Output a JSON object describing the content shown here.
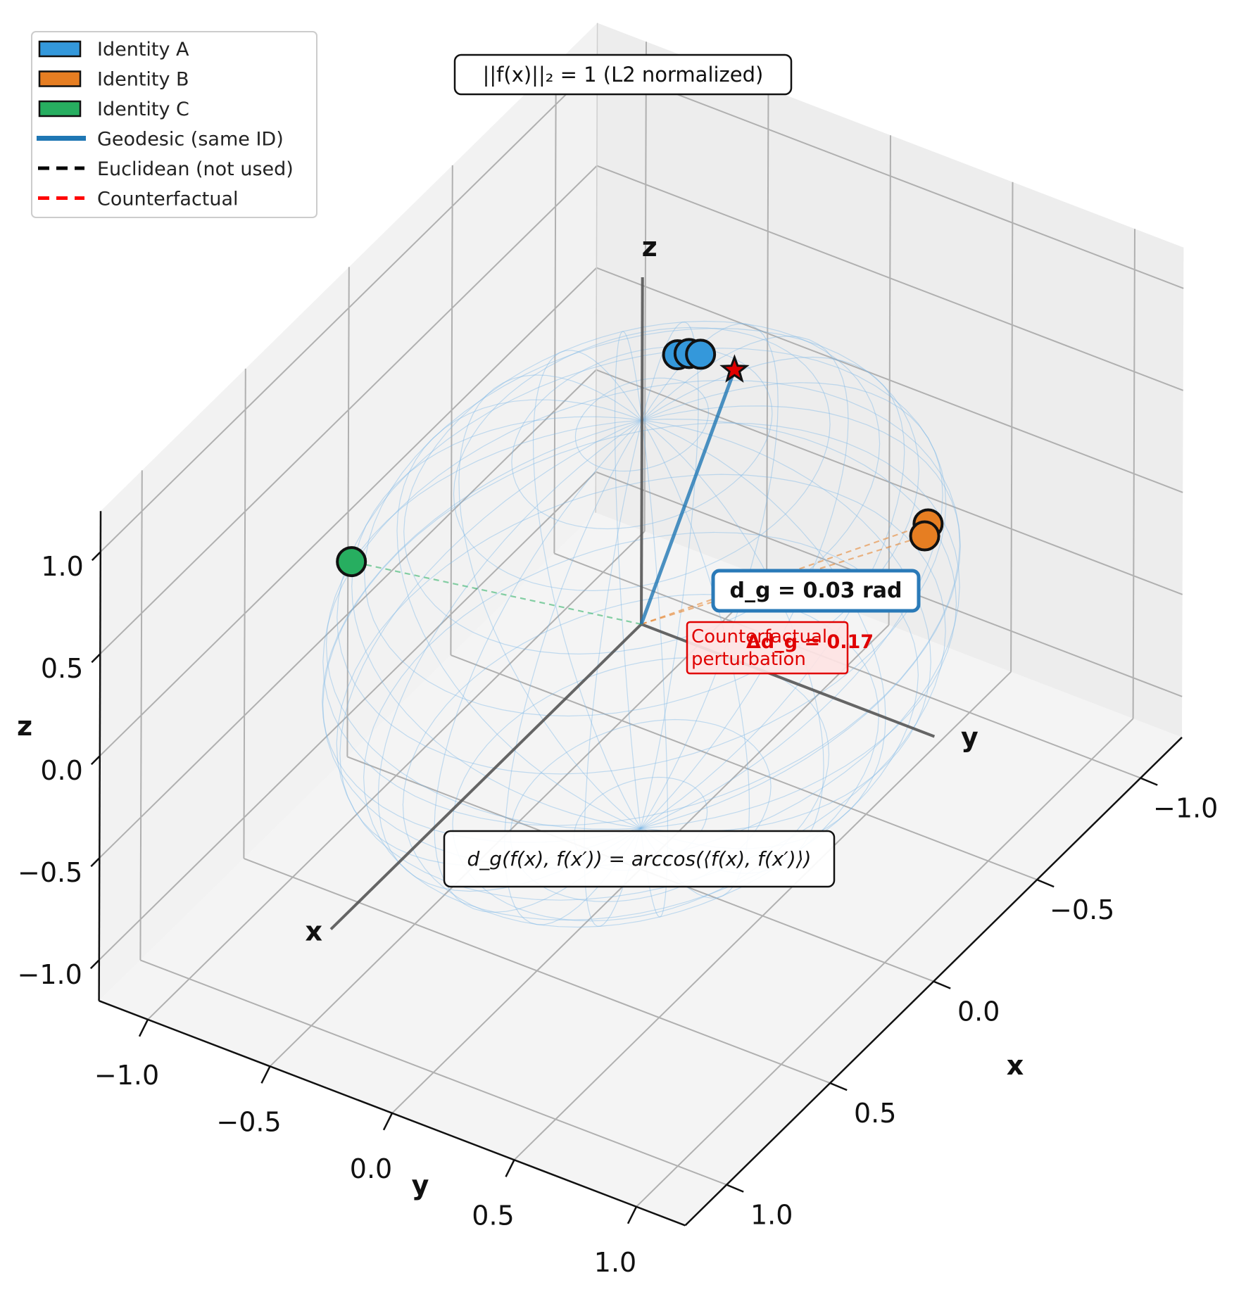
{
  "chart_data": {
    "type": "scatter",
    "projection": "3d",
    "xlabel": "x",
    "ylabel": "y",
    "zlabel": "z",
    "xlim": [
      -1.2,
      1.2
    ],
    "ylim": [
      -1.2,
      1.2
    ],
    "zlim": [
      -1.2,
      1.2
    ],
    "x_ticks": [
      "−1.0",
      "−0.5",
      "0.0",
      "0.5",
      "1.0"
    ],
    "y_ticks": [
      "−1.0",
      "−0.5",
      "0.0",
      "0.5",
      "1.0"
    ],
    "z_ticks": [
      "−1.0",
      "−0.5",
      "0.0",
      "0.5",
      "1.0"
    ],
    "grid": true,
    "legend_position": "top-left",
    "unit_sphere": true,
    "internal_axis_labels": {
      "x": "x",
      "y": "y",
      "z": "z"
    },
    "series": [
      {
        "name": "Identity A",
        "color": "#3498db",
        "points": [
          [
            -0.84,
            -0.47,
            0.27
          ],
          [
            -0.82,
            -0.5,
            0.28
          ],
          [
            -0.8,
            -0.53,
            0.28
          ]
        ]
      },
      {
        "name": "Identity B",
        "color": "#e67e22",
        "points": [
          [
            -0.4,
            0.82,
            0.41
          ],
          [
            -0.44,
            0.8,
            0.42
          ]
        ]
      },
      {
        "name": "Identity C",
        "color": "#27ae60",
        "points": [
          [
            0.28,
            -0.95,
            0.15
          ]
        ]
      }
    ],
    "counterfactual_point": [
      -0.91,
      -0.39,
      0.16
    ],
    "legend": [
      {
        "label": "Identity A",
        "kind": "patch",
        "color": "#3498db"
      },
      {
        "label": "Identity B",
        "kind": "patch",
        "color": "#e67e22"
      },
      {
        "label": "Identity C",
        "kind": "patch",
        "color": "#27ae60"
      },
      {
        "label": "Geodesic (same ID)",
        "kind": "line",
        "color": "#1f77b4"
      },
      {
        "label": "Euclidean (not used)",
        "kind": "dashed",
        "color": "#000000"
      },
      {
        "label": "Counterfactual",
        "kind": "dashed",
        "color": "#ff0000"
      }
    ],
    "annotations": {
      "norm_box": "||f(x)||₂ = 1 (L2 normalized)",
      "geodesic_distance": "d_g = 0.03 rad",
      "counterfactual_label": "Counterfactual\nperturbation",
      "delta": "Δd_g = 0.17",
      "formula": "d_g(f(x), f(x′)) = arccos(⟨f(x), f(x′)⟩)"
    }
  }
}
